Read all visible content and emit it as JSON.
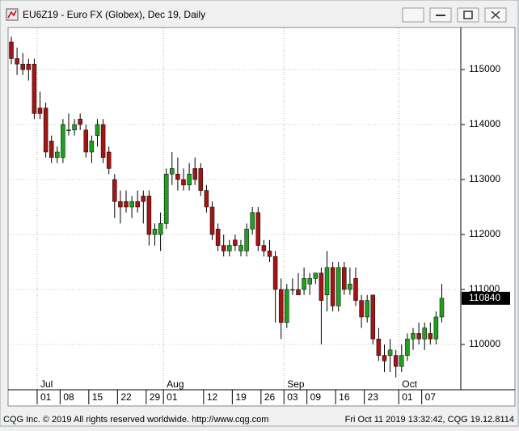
{
  "chart_data": {
    "type": "candlestick",
    "title": "EU6Z19 - Euro FX (Globex), Dec 19, Daily",
    "annotations": [
      "CQG Inc. © 2019 All rights reserved worldwide. http://www.cqg.com",
      "Fri Oct 11 2019 13:32:42, CQG 19.12.8114"
    ],
    "categories": [
      null,
      null,
      null,
      null,
      null,
      "01",
      null,
      null,
      null,
      "08",
      null,
      null,
      null,
      null,
      "15",
      null,
      null,
      null,
      null,
      "22",
      null,
      null,
      null,
      null,
      "29",
      null,
      null,
      "01",
      null,
      null,
      null,
      null,
      null,
      null,
      "12",
      null,
      null,
      null,
      null,
      "19",
      null,
      null,
      null,
      null,
      "26",
      null,
      null,
      null,
      "03",
      null,
      null,
      null,
      "09",
      null,
      null,
      null,
      null,
      "16",
      null,
      null,
      null,
      null,
      "23",
      null,
      null,
      null,
      null,
      null,
      "01",
      null,
      null,
      null,
      "07",
      null,
      null,
      null
    ],
    "months": [
      null,
      null,
      null,
      null,
      null,
      "Jul",
      null,
      null,
      null,
      null,
      null,
      null,
      null,
      null,
      null,
      null,
      null,
      null,
      null,
      null,
      null,
      null,
      null,
      null,
      null,
      null,
      null,
      "Aug",
      null,
      null,
      null,
      null,
      null,
      null,
      null,
      null,
      null,
      null,
      null,
      null,
      null,
      null,
      null,
      null,
      null,
      null,
      null,
      null,
      "Sep",
      null,
      null,
      null,
      null,
      null,
      null,
      null,
      null,
      null,
      null,
      null,
      null,
      null,
      null,
      null,
      null,
      null,
      null,
      null,
      "Oct",
      null,
      null,
      null,
      null,
      null,
      null,
      null
    ],
    "open": [
      115500,
      115200,
      115100,
      115100,
      115100,
      114300,
      114300,
      113700,
      113400,
      113400,
      113900,
      113900,
      114100,
      113900,
      113500,
      113800,
      114000,
      113500,
      113000,
      112600,
      112600,
      112500,
      112600,
      112700,
      112700,
      112000,
      112000,
      112200,
      113100,
      113100,
      113000,
      112900,
      113200,
      113200,
      112800,
      112500,
      112100,
      111800,
      111700,
      111900,
      111700,
      111700,
      112100,
      112400,
      111800,
      111700,
      111600,
      111000,
      110400,
      111000,
      111000,
      111000,
      111100,
      111200,
      111300,
      110900,
      111400,
      110700,
      111400,
      111000,
      111200,
      110800,
      110500,
      110900,
      110100,
      109800,
      109800,
      109800,
      109600,
      109800,
      110100,
      110200,
      110100,
      110200,
      110100,
      110500
    ],
    "high": [
      115600,
      115400,
      115300,
      115200,
      115200,
      114600,
      114400,
      113800,
      113600,
      114100,
      114200,
      114100,
      114200,
      114000,
      113800,
      114100,
      114100,
      113600,
      113100,
      112800,
      112800,
      112700,
      112800,
      112800,
      112800,
      112200,
      112400,
      113200,
      113500,
      113400,
      113200,
      113300,
      113400,
      113300,
      112900,
      112600,
      112200,
      112000,
      111900,
      112000,
      111900,
      112200,
      112500,
      112500,
      111900,
      111900,
      111700,
      111200,
      111100,
      111200,
      111300,
      111400,
      111300,
      111300,
      111400,
      111700,
      111500,
      111500,
      111500,
      111400,
      111400,
      110900,
      110900,
      110900,
      110300,
      110000,
      110100,
      109900,
      110000,
      110200,
      110300,
      110400,
      110400,
      110400,
      110600,
      111100
    ],
    "low": [
      115100,
      114900,
      114900,
      114800,
      114100,
      114100,
      113400,
      113300,
      113300,
      113300,
      113800,
      113800,
      113900,
      113400,
      113300,
      113600,
      113300,
      113100,
      112300,
      112200,
      112400,
      112300,
      112400,
      112200,
      111800,
      111800,
      111700,
      112100,
      112900,
      112800,
      112800,
      112800,
      112900,
      112700,
      112400,
      111900,
      111700,
      111600,
      111600,
      111700,
      111600,
      111600,
      112000,
      111700,
      111600,
      111500,
      110400,
      110100,
      110300,
      110900,
      110900,
      110900,
      110900,
      111100,
      110000,
      110600,
      110600,
      110600,
      110900,
      110900,
      110700,
      110300,
      110400,
      110000,
      109700,
      109500,
      109500,
      109400,
      109500,
      109700,
      109900,
      110000,
      109900,
      110000,
      110000,
      110400
    ],
    "close": [
      115200,
      115100,
      115000,
      115000,
      114200,
      114200,
      113500,
      113400,
      113500,
      114000,
      113900,
      114000,
      114000,
      113500,
      113700,
      114000,
      113400,
      113200,
      112600,
      112500,
      112500,
      112600,
      112500,
      112600,
      112000,
      112100,
      112200,
      113100,
      113200,
      113000,
      112900,
      113100,
      113000,
      112800,
      112500,
      112000,
      111800,
      111700,
      111800,
      111800,
      111800,
      112100,
      112400,
      111800,
      111700,
      111600,
      111000,
      110400,
      111000,
      111000,
      110900,
      111200,
      111200,
      111300,
      110800,
      111400,
      110700,
      111400,
      111000,
      111100,
      110800,
      110500,
      110800,
      110100,
      109800,
      109700,
      109900,
      109600,
      109800,
      110100,
      110200,
      110100,
      110300,
      110100,
      110500,
      110840
    ],
    "up_color": "#1fa01f",
    "down_color": "#a31515",
    "ylim": [
      109176,
      115765
    ],
    "yticks": [
      110000,
      111000,
      112000,
      113000,
      114000,
      115000
    ],
    "grid": true
  }
}
